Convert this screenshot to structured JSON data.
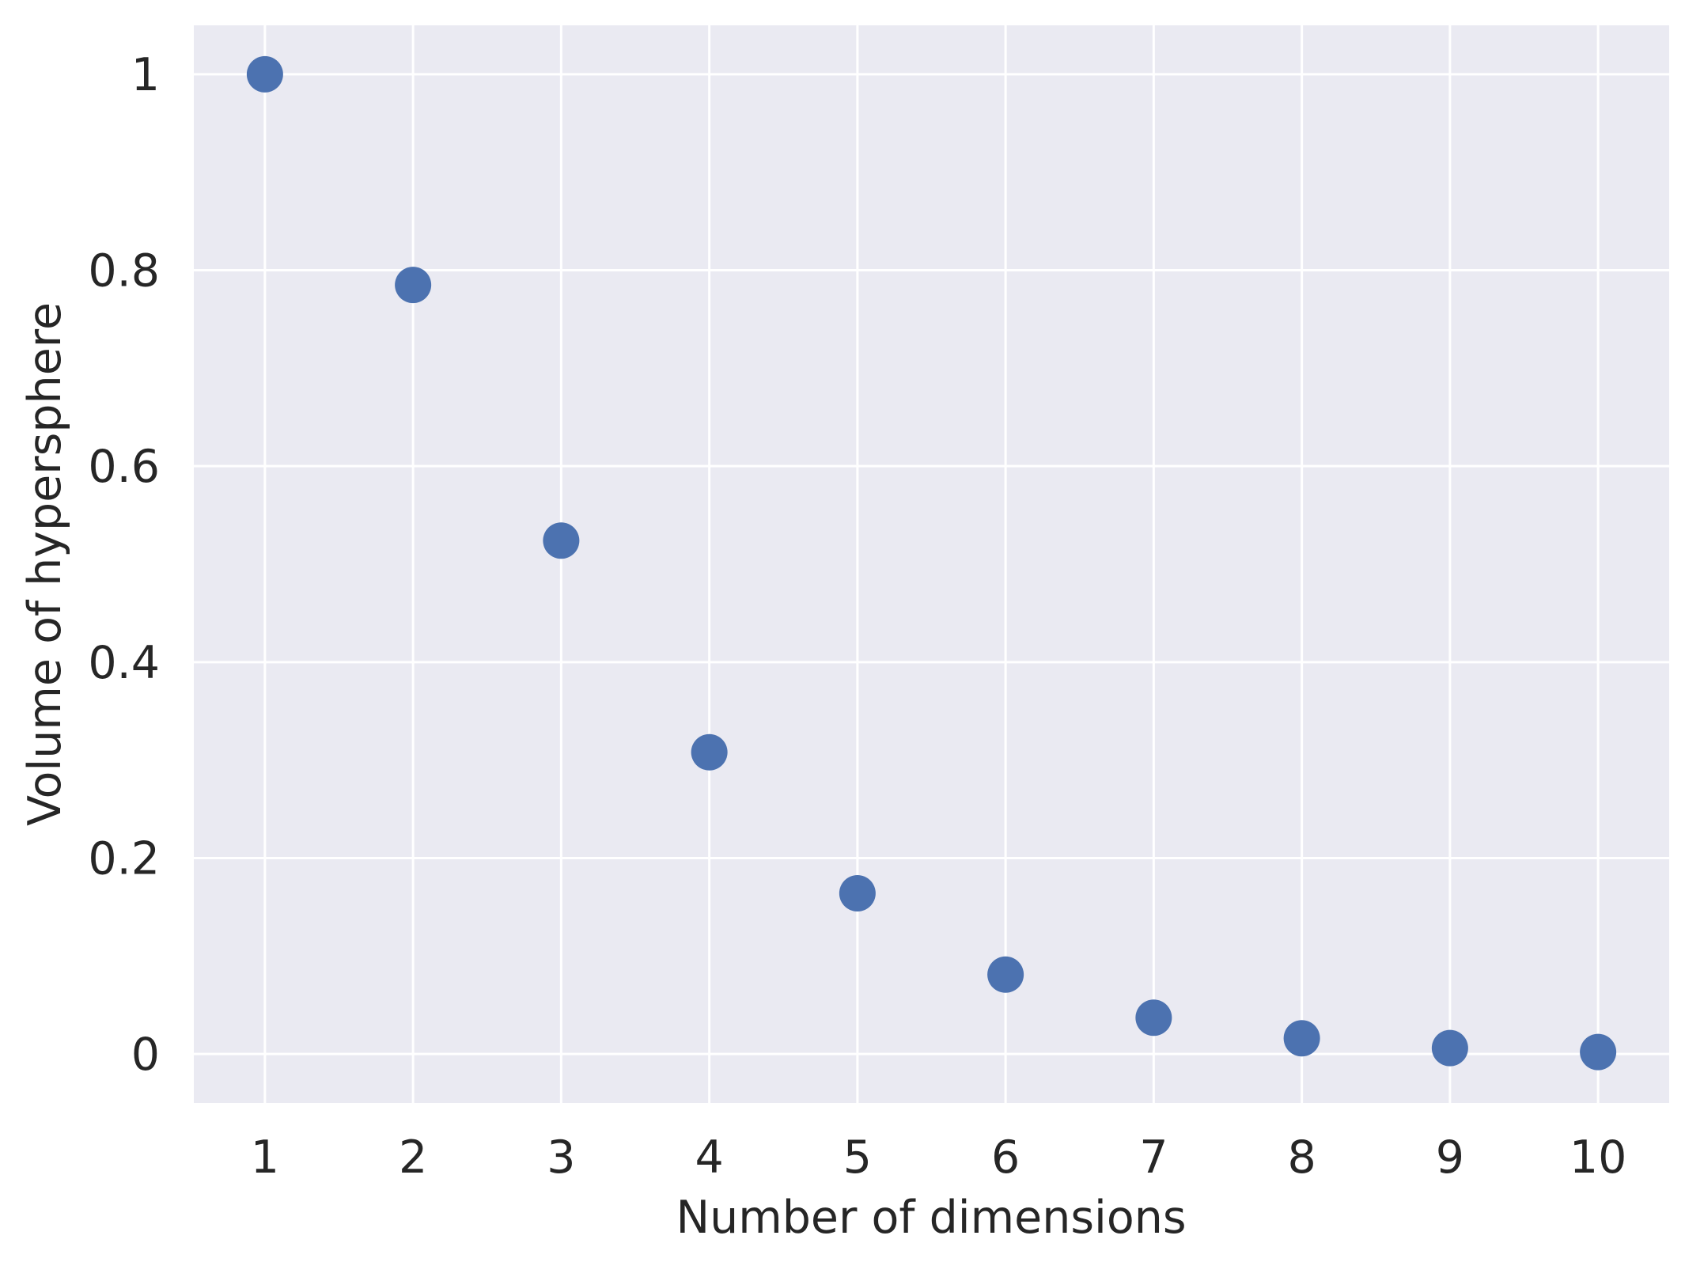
{
  "chart_data": {
    "type": "scatter",
    "title": "",
    "xlabel": "Number of dimensions",
    "ylabel": "Volume of hypersphere",
    "x": [
      1,
      2,
      3,
      4,
      5,
      6,
      7,
      8,
      9,
      10
    ],
    "y": [
      1.0,
      0.785,
      0.524,
      0.308,
      0.164,
      0.081,
      0.037,
      0.016,
      0.006,
      0.002
    ],
    "xticks": [
      1,
      2,
      3,
      4,
      5,
      6,
      7,
      8,
      9,
      10
    ],
    "xtick_labels": [
      "1",
      "2",
      "3",
      "4",
      "5",
      "6",
      "7",
      "8",
      "9",
      "10"
    ],
    "yticks": [
      0,
      0.2,
      0.4,
      0.6,
      0.8,
      1
    ],
    "ytick_labels": [
      "0",
      "0.2",
      "0.4",
      "0.6",
      "0.8",
      "1"
    ],
    "xlim": [
      0.52,
      10.48
    ],
    "ylim": [
      -0.05,
      1.05
    ],
    "grid": true,
    "legend": "none",
    "colors": {
      "marker": "#4c72b0",
      "background": "#eaeaf2",
      "grid": "#ffffff",
      "text": "#262626"
    }
  }
}
